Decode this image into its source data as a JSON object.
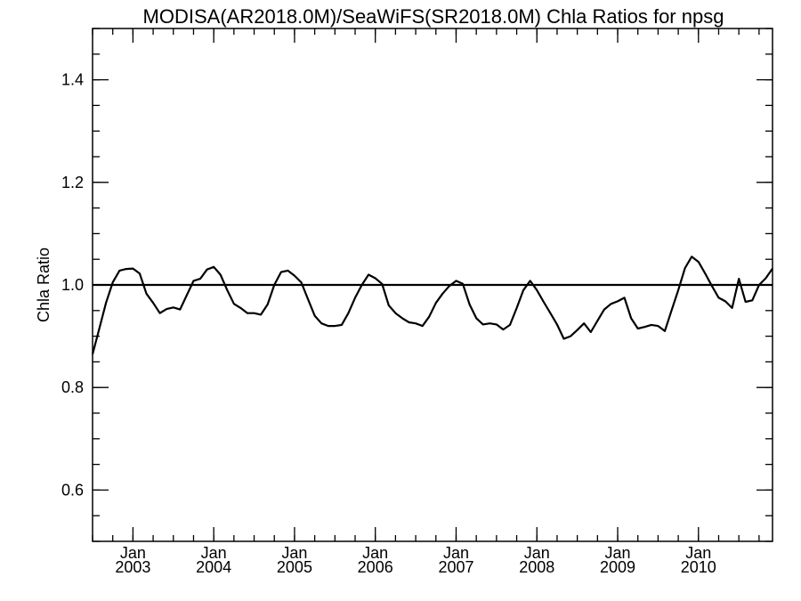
{
  "chart_data": {
    "type": "line",
    "title": "MODISA(AR2018.0M)/SeaWiFS(SR2018.0M)  Chla Ratios for npsg",
    "xlabel": "",
    "ylabel": "Chla Ratio",
    "ylim": [
      0.5,
      1.5
    ],
    "xlim": [
      "2002-07",
      "2010-12"
    ],
    "y_ticks": [
      0.6,
      0.8,
      1.0,
      1.2,
      1.4
    ],
    "y_tick_labels": [
      "0.6",
      "0.8",
      "1.0",
      "1.2",
      "1.4"
    ],
    "x_ticks": [
      {
        "date": "2003-01",
        "month": "Jan",
        "year": "2003"
      },
      {
        "date": "2004-01",
        "month": "Jan",
        "year": "2004"
      },
      {
        "date": "2005-01",
        "month": "Jan",
        "year": "2005"
      },
      {
        "date": "2006-01",
        "month": "Jan",
        "year": "2006"
      },
      {
        "date": "2007-01",
        "month": "Jan",
        "year": "2007"
      },
      {
        "date": "2008-01",
        "month": "Jan",
        "year": "2008"
      },
      {
        "date": "2009-01",
        "month": "Jan",
        "year": "2009"
      },
      {
        "date": "2010-01",
        "month": "Jan",
        "year": "2010"
      }
    ],
    "reference_line": {
      "y": 1.0
    },
    "grid": false,
    "series": [
      {
        "x": [
          "2002-07",
          "2002-08",
          "2002-09",
          "2002-10",
          "2002-11",
          "2002-12",
          "2003-01",
          "2003-02",
          "2003-03",
          "2003-04",
          "2003-05",
          "2003-06",
          "2003-07",
          "2003-08",
          "2003-09",
          "2003-10",
          "2003-11",
          "2003-12",
          "2004-01",
          "2004-02",
          "2004-03",
          "2004-04",
          "2004-05",
          "2004-06",
          "2004-07",
          "2004-08",
          "2004-09",
          "2004-10",
          "2004-11",
          "2004-12",
          "2005-01",
          "2005-02",
          "2005-03",
          "2005-04",
          "2005-05",
          "2005-06",
          "2005-07",
          "2005-08",
          "2005-09",
          "2005-10",
          "2005-11",
          "2005-12",
          "2006-01",
          "2006-02",
          "2006-03",
          "2006-04",
          "2006-05",
          "2006-06",
          "2006-07",
          "2006-08",
          "2006-09",
          "2006-10",
          "2006-11",
          "2006-12",
          "2007-01",
          "2007-02",
          "2007-03",
          "2007-04",
          "2007-05",
          "2007-06",
          "2007-07",
          "2007-08",
          "2007-09",
          "2007-10",
          "2007-11",
          "2007-12",
          "2008-01",
          "2008-02",
          "2008-03",
          "2008-04",
          "2008-05",
          "2008-06",
          "2008-07",
          "2008-08",
          "2008-09",
          "2008-10",
          "2008-11",
          "2008-12",
          "2009-01",
          "2009-02",
          "2009-03",
          "2009-04",
          "2009-05",
          "2009-06",
          "2009-07",
          "2009-08",
          "2009-09",
          "2009-10",
          "2009-11",
          "2009-12",
          "2010-01",
          "2010-02",
          "2010-03",
          "2010-04",
          "2010-05",
          "2010-06",
          "2010-07",
          "2010-08",
          "2010-09",
          "2010-10",
          "2010-11",
          "2010-12"
        ],
        "values": [
          0.865,
          0.915,
          0.965,
          1.005,
          1.028,
          1.031,
          1.032,
          1.022,
          0.983,
          0.965,
          0.945,
          0.953,
          0.956,
          0.952,
          0.98,
          1.008,
          1.012,
          1.03,
          1.035,
          1.02,
          0.99,
          0.963,
          0.955,
          0.945,
          0.945,
          0.942,
          0.962,
          1.0,
          1.025,
          1.028,
          1.018,
          1.005,
          0.972,
          0.94,
          0.925,
          0.92,
          0.92,
          0.922,
          0.945,
          0.975,
          1.0,
          1.02,
          1.013,
          1.002,
          0.96,
          0.945,
          0.935,
          0.927,
          0.925,
          0.92,
          0.938,
          0.965,
          0.983,
          0.998,
          1.008,
          1.002,
          0.962,
          0.935,
          0.923,
          0.925,
          0.923,
          0.913,
          0.922,
          0.955,
          0.99,
          1.008,
          0.99,
          0.967,
          0.945,
          0.923,
          0.895,
          0.9,
          0.912,
          0.925,
          0.908,
          0.93,
          0.952,
          0.963,
          0.968,
          0.975,
          0.935,
          0.915,
          0.918,
          0.922,
          0.92,
          0.91,
          0.95,
          0.99,
          1.033,
          1.055,
          1.045,
          1.022,
          0.998,
          0.975,
          0.968,
          0.955,
          1.012,
          0.967,
          0.97,
          1.0,
          1.013,
          1.032
        ]
      }
    ]
  }
}
